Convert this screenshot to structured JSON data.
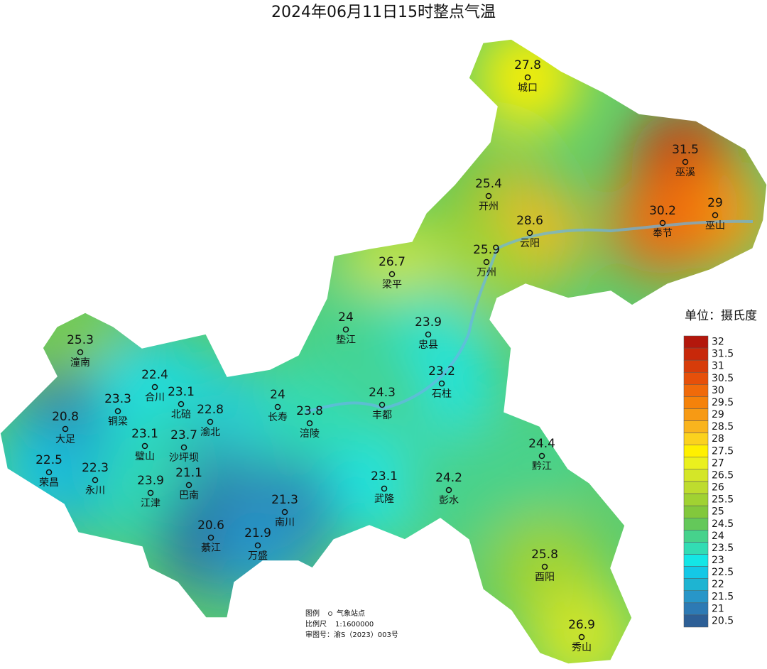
{
  "title": "2024年06月11日15时整点气温",
  "unit_label": "单位：摄氏度",
  "legend": {
    "levels": [
      32,
      31.5,
      31,
      30.5,
      30,
      29.5,
      29,
      28.5,
      28,
      27.5,
      27,
      26.5,
      26,
      25.5,
      25,
      24.5,
      24,
      23.5,
      23,
      22.5,
      22,
      21.5,
      21,
      20.5
    ],
    "colors": [
      "#b3170c",
      "#c8280a",
      "#d73c0a",
      "#e6500a",
      "#f06a0a",
      "#f5820a",
      "#f79a14",
      "#f9b41e",
      "#fbd21e",
      "#fff000",
      "#eaf01e",
      "#d4e628",
      "#bedc2e",
      "#a0d232",
      "#82c83c",
      "#64c85a",
      "#46d28c",
      "#32dcb4",
      "#14e6e6",
      "#14c8e6",
      "#1eb4d2",
      "#2896c8",
      "#2d7ab4",
      "#2d5f96"
    ]
  },
  "stations": [
    {
      "name": "城口",
      "value": 27.8
    },
    {
      "name": "巫溪",
      "value": 31.5
    },
    {
      "name": "开州",
      "value": 25.4
    },
    {
      "name": "巫山",
      "value": 29
    },
    {
      "name": "奉节",
      "value": 30.2
    },
    {
      "name": "云阳",
      "value": 28.6
    },
    {
      "name": "万州",
      "value": 25.9
    },
    {
      "name": "梁平",
      "value": 26.7
    },
    {
      "name": "垫江",
      "value": 24
    },
    {
      "name": "忠县",
      "value": 23.9
    },
    {
      "name": "潼南",
      "value": 25.3
    },
    {
      "name": "石柱",
      "value": 23.2
    },
    {
      "name": "合川",
      "value": 22.4
    },
    {
      "name": "铜梁",
      "value": 23.3
    },
    {
      "name": "北碚",
      "value": 23.1
    },
    {
      "name": "长寿",
      "value": 24
    },
    {
      "name": "丰都",
      "value": 24.3
    },
    {
      "name": "涪陵",
      "value": 23.8
    },
    {
      "name": "渝北",
      "value": 22.8
    },
    {
      "name": "大足",
      "value": 20.8
    },
    {
      "name": "璧山",
      "value": 23.1
    },
    {
      "name": "沙坪坝",
      "value": 23.7
    },
    {
      "name": "黔江",
      "value": 24.4
    },
    {
      "name": "荣昌",
      "value": 22.5
    },
    {
      "name": "永川",
      "value": 22.3
    },
    {
      "name": "巴南",
      "value": 21.1
    },
    {
      "name": "武隆",
      "value": 23.1
    },
    {
      "name": "彭水",
      "value": 24.2
    },
    {
      "name": "江津",
      "value": 23.9
    },
    {
      "name": "南川",
      "value": 21.3
    },
    {
      "name": "綦江",
      "value": 20.6
    },
    {
      "name": "万盛",
      "value": 21.9
    },
    {
      "name": "酉阳",
      "value": 25.8
    },
    {
      "name": "秀山",
      "value": 26.9
    }
  ],
  "notes": {
    "legend_label": "图例",
    "station_label": "气象站点",
    "scale_label": "比例尺",
    "scale": "1:1600000",
    "approval": "审图号：渝S（2023）003号"
  }
}
